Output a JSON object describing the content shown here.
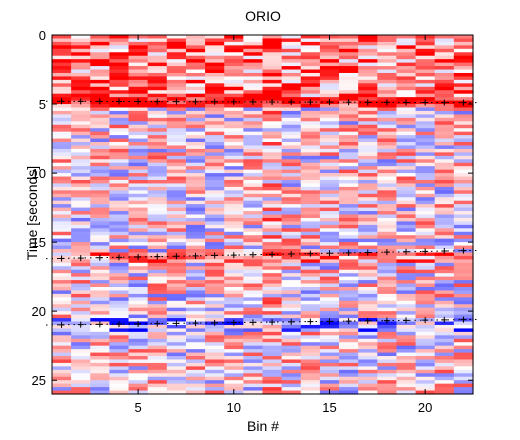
{
  "chart_data": {
    "type": "heatmap",
    "title": "ORIO",
    "xlabel": "Bin #",
    "ylabel": "Time [seconds]",
    "xlim": [
      1,
      22
    ],
    "ylim": [
      0,
      26
    ],
    "y_reversed": true,
    "x_ticks": [
      5,
      10,
      15,
      20
    ],
    "y_ticks": [
      0,
      5,
      10,
      15,
      20,
      25
    ],
    "colormap": [
      "#0000ff",
      "#ffffff",
      "#ff0000"
    ],
    "bins": 22,
    "time_rows": 104,
    "event_times": [
      4.8,
      16.2,
      21.0
    ],
    "event_times_right": [
      4.9,
      15.6,
      20.6
    ],
    "value_range": [
      -1,
      1
    ]
  }
}
